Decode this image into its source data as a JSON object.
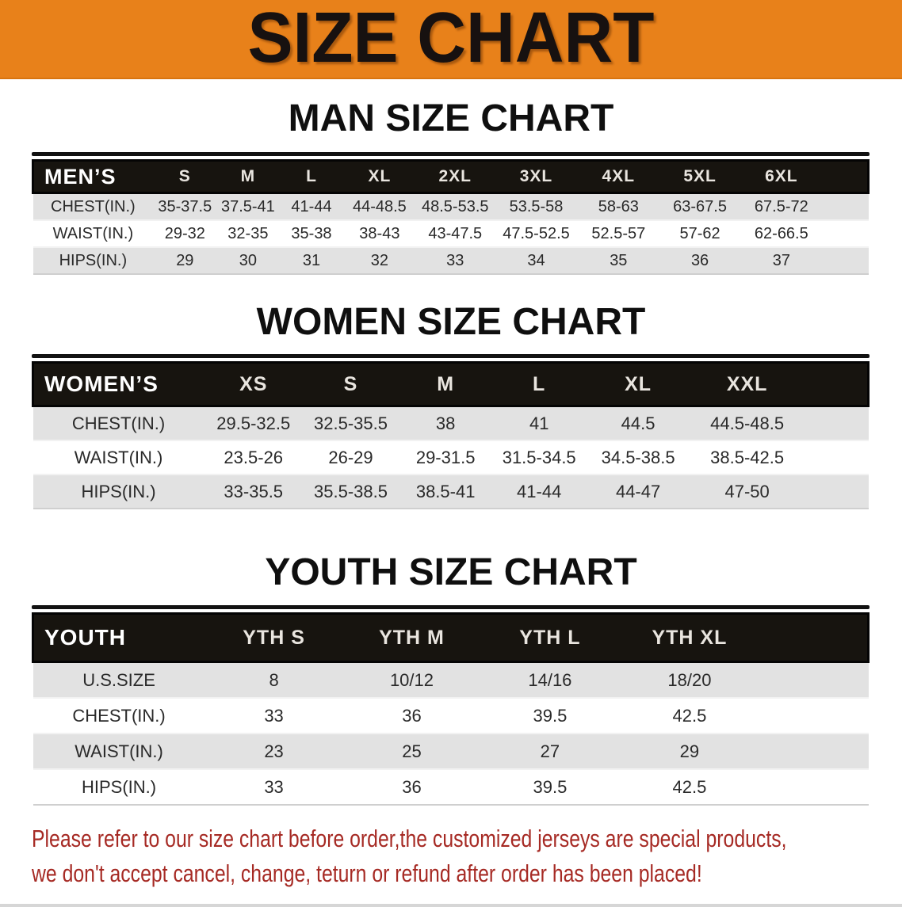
{
  "banner": {
    "title": "SIZE CHART"
  },
  "colors": {
    "banner_bg": "#e8811a",
    "banner_text": "#171110",
    "header_bar_bg": "#17140f",
    "header_bar_text": "#ffffff",
    "row_alt_bg": "#e2e2e2",
    "row_bg": "#ffffff",
    "footer_text": "#a62a24"
  },
  "sections": {
    "men": {
      "title": "MAN SIZE CHART",
      "header_label": "MEN’S",
      "sizes": [
        "S",
        "M",
        "L",
        "XL",
        "2XL",
        "3XL",
        "4XL",
        "5XL",
        "6XL"
      ],
      "rows": [
        {
          "label": "CHEST(IN.)",
          "values": [
            "35-37.5",
            "37.5-41",
            "41-44",
            "44-48.5",
            "48.5-53.5",
            "53.5-58",
            "58-63",
            "63-67.5",
            "67.5-72"
          ]
        },
        {
          "label": "WAIST(IN.)",
          "values": [
            "29-32",
            "32-35",
            "35-38",
            "38-43",
            "43-47.5",
            "47.5-52.5",
            "52.5-57",
            "57-62",
            "62-66.5"
          ]
        },
        {
          "label": "HIPS(IN.)",
          "values": [
            "29",
            "30",
            "31",
            "32",
            "33",
            "34",
            "35",
            "36",
            "37"
          ]
        }
      ],
      "col_widths_pct": [
        14.4,
        7.6,
        7.5,
        7.7,
        8.6,
        9.5,
        9.9,
        9.8,
        9.7,
        9.8,
        5.5
      ]
    },
    "women": {
      "title": "WOMEN SIZE CHART",
      "header_label": "WOMEN’S",
      "sizes": [
        "XS",
        "S",
        "M",
        "L",
        "XL",
        "XXL"
      ],
      "rows": [
        {
          "label": "CHEST(IN.)",
          "values": [
            "29.5-32.5",
            "32.5-35.5",
            "38",
            "41",
            "44.5",
            "44.5-48.5"
          ]
        },
        {
          "label": "WAIST(IN.)",
          "values": [
            "23.5-26",
            "26-29",
            "29-31.5",
            "31.5-34.5",
            "34.5-38.5",
            "38.5-42.5"
          ]
        },
        {
          "label": "HIPS(IN.)",
          "values": [
            "33-35.5",
            "35.5-38.5",
            "38.5-41",
            "41-44",
            "44-47",
            "47-50"
          ]
        }
      ],
      "col_widths_pct": [
        20.5,
        11.8,
        11.5,
        11.2,
        11.2,
        12.5,
        13.6,
        7.7
      ]
    },
    "youth": {
      "title": "YOUTH SIZE CHART",
      "header_label": "YOUTH",
      "sizes": [
        "YTH S",
        "YTH M",
        "YTH L",
        "YTH XL"
      ],
      "rows": [
        {
          "label": "U.S.SIZE",
          "values": [
            "8",
            "10/12",
            "14/16",
            "18/20"
          ]
        },
        {
          "label": "CHEST(IN.)",
          "values": [
            "33",
            "36",
            "39.5",
            "42.5"
          ]
        },
        {
          "label": "WAIST(IN.)",
          "values": [
            "23",
            "25",
            "27",
            "29"
          ]
        },
        {
          "label": "HIPS(IN.)",
          "values": [
            "33",
            "36",
            "39.5",
            "42.5"
          ]
        }
      ],
      "col_widths_pct": [
        20.6,
        16.5,
        16.5,
        16.6,
        16.8,
        13.0
      ]
    }
  },
  "footer": {
    "line1": "Please refer to our size chart before order,the customized jerseys are special products,",
    "line2": "we don't accept cancel, change, teturn or refund after order has been placed!"
  }
}
